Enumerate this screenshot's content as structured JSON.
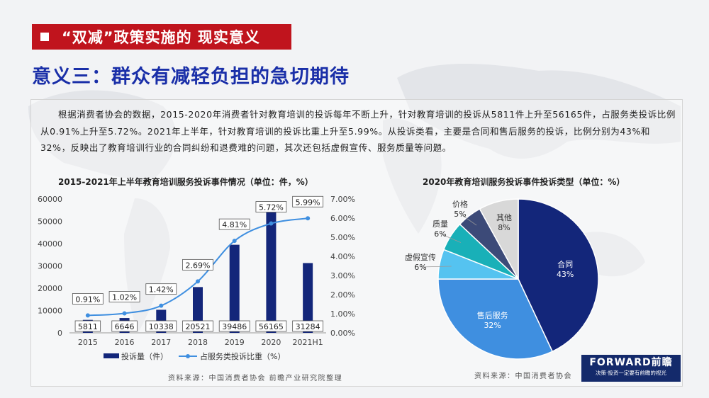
{
  "header": {
    "title": "“双减”政策实施的 现实意义"
  },
  "subtitle": "意义三：群众有减轻负担的急切期待",
  "paragraph": "根据消费者协会的数据，2015-2020年消费者针对教育培训的投诉每年不断上升，针对教育培训的投诉从5811件上升至56165件，占服务类投诉比例从0.91%上升至5.72%。2021年上半年，针对教育培训的投诉比重上升至5.99%。从投诉类看，主要是合同和售后服务的投诉，比例分别为43%和32%，反映出了教育培训行业的合同纠纷和退费难的问题，其次还包括虚假宣传、服务质量等问题。",
  "colors": {
    "bar": "#13267a",
    "line": "#3f8fe0",
    "accent_red": "#c0141d",
    "title_blue": "#1a2fa8"
  },
  "chart_data": [
    {
      "type": "bar",
      "title": "2015-2021年上半年教育培训服务投诉事件情况（单位：件，%）",
      "categories": [
        "2015",
        "2016",
        "2017",
        "2018",
        "2019",
        "2020",
        "2021H1"
      ],
      "series": [
        {
          "name": "投诉量（件）",
          "type": "bar",
          "axis": "left",
          "values": [
            5811,
            6646,
            10338,
            20521,
            39486,
            56165,
            31284
          ],
          "labels": [
            "5811",
            "6646",
            "10338",
            "20521",
            "39486",
            "56165",
            "31284"
          ]
        },
        {
          "name": "占服务类投诉比重（%）",
          "type": "line",
          "axis": "right",
          "values": [
            0.91,
            1.02,
            1.42,
            2.69,
            4.81,
            5.72,
            5.99
          ],
          "labels": [
            "0.91%",
            "1.02%",
            "1.42%",
            "2.69%",
            "4.81%",
            "5.72%",
            "5.99%"
          ]
        }
      ],
      "y_left": {
        "min": 0,
        "max": 60000,
        "ticks": [
          "0",
          "10000",
          "20000",
          "30000",
          "40000",
          "50000",
          "60000"
        ]
      },
      "y_right": {
        "min": 0,
        "max": 7,
        "ticks": [
          "0.00%",
          "1.00%",
          "2.00%",
          "3.00%",
          "4.00%",
          "5.00%",
          "6.00%",
          "7.00%"
        ]
      },
      "legend_position": "bottom",
      "source": "资料来源：中国消费者协会 前瞻产业研究院整理"
    },
    {
      "type": "pie",
      "title": "2020年教育培训服务投诉事件投诉类型（单位：%）",
      "slices": [
        {
          "label": "合同",
          "value": 43,
          "text": "43%",
          "color": "#13267a"
        },
        {
          "label": "售后服务",
          "value": 32,
          "text": "32%",
          "color": "#3f8fe0"
        },
        {
          "label": "虚假宣传",
          "value": 6,
          "text": "6%",
          "color": "#55c3f0"
        },
        {
          "label": "质量",
          "value": 6,
          "text": "6%",
          "color": "#19b0b8"
        },
        {
          "label": "价格",
          "value": 5,
          "text": "5%",
          "color": "#3c4a78"
        },
        {
          "label": "其他",
          "value": 8,
          "text": "8%",
          "color": "#d8d8d8"
        }
      ],
      "source": "资料来源：中国消费者协会"
    }
  ],
  "brand": {
    "name": "FORWARD前瞻",
    "slogan": "决策·投资一定要有前瞻的视光"
  }
}
